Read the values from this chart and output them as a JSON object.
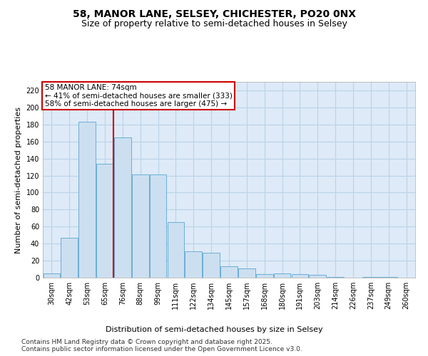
{
  "title1": "58, MANOR LANE, SELSEY, CHICHESTER, PO20 0NX",
  "title2": "Size of property relative to semi-detached houses in Selsey",
  "xlabel": "Distribution of semi-detached houses by size in Selsey",
  "ylabel": "Number of semi-detached properties",
  "bar_color": "#ccdff0",
  "bar_edge_color": "#6aaed6",
  "grid_color": "#b8d4ea",
  "background_color": "#deeaf7",
  "categories": [
    "30sqm",
    "42sqm",
    "53sqm",
    "65sqm",
    "76sqm",
    "88sqm",
    "99sqm",
    "111sqm",
    "122sqm",
    "134sqm",
    "145sqm",
    "157sqm",
    "168sqm",
    "180sqm",
    "191sqm",
    "203sqm",
    "214sqm",
    "226sqm",
    "237sqm",
    "249sqm",
    "260sqm"
  ],
  "values": [
    5,
    47,
    183,
    134,
    165,
    121,
    121,
    65,
    31,
    29,
    13,
    11,
    4,
    5,
    4,
    3,
    1,
    0,
    1,
    1,
    0
  ],
  "ylim": [
    0,
    230
  ],
  "yticks": [
    0,
    20,
    40,
    60,
    80,
    100,
    120,
    140,
    160,
    180,
    200,
    220
  ],
  "ref_line_index": 3.5,
  "annotation_title": "58 MANOR LANE: 74sqm",
  "annotation_line1": "← 41% of semi-detached houses are smaller (333)",
  "annotation_line2": "58% of semi-detached houses are larger (475) →",
  "footnote1": "Contains HM Land Registry data © Crown copyright and database right 2025.",
  "footnote2": "Contains public sector information licensed under the Open Government Licence v3.0.",
  "ref_color": "#cc0000",
  "title_fontsize": 10,
  "subtitle_fontsize": 9,
  "axis_label_fontsize": 8,
  "tick_fontsize": 7,
  "annotation_fontsize": 7.5,
  "footnote_fontsize": 6.5
}
